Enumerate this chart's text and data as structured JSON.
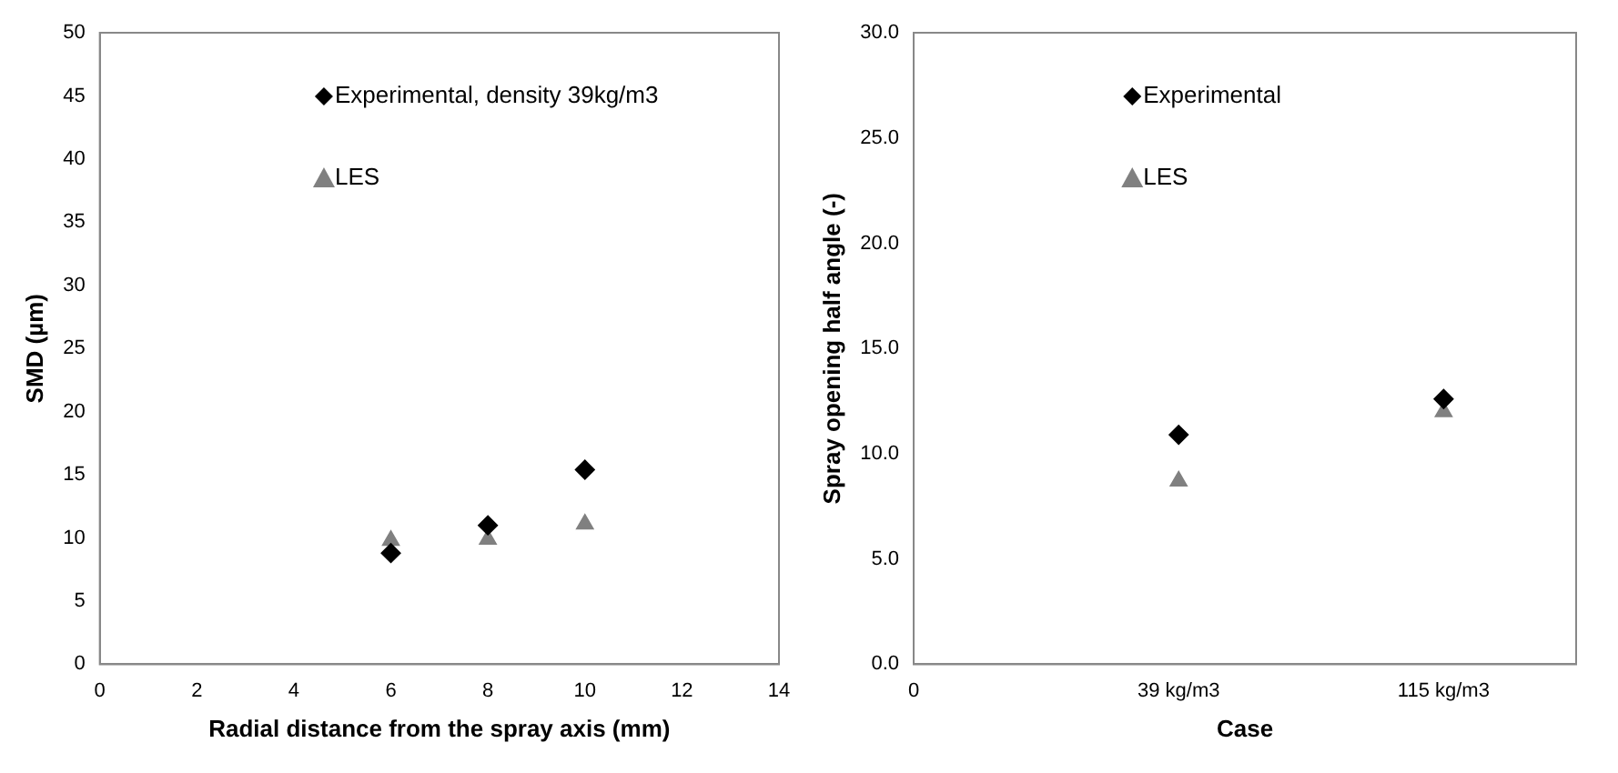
{
  "chart_data": [
    {
      "type": "scatter",
      "xlabel": "Radial distance from the spray axis (mm)",
      "ylabel": "SMD (µm)",
      "xlim": [
        0,
        14
      ],
      "xticks": [
        0,
        2,
        4,
        6,
        8,
        10,
        12,
        14
      ],
      "ylim": [
        0,
        50
      ],
      "yticks": [
        0,
        5,
        10,
        15,
        20,
        25,
        30,
        35,
        40,
        45,
        50
      ],
      "grid": false,
      "legend": "top",
      "series": [
        {
          "name": "Experimental, density 39kg/m3",
          "color": "#000000",
          "marker": "diamond",
          "x": [
            6,
            8,
            10
          ],
          "values": [
            8.8,
            11,
            15.4
          ]
        },
        {
          "name": "LES",
          "color": "#808080",
          "marker": "triangle",
          "x": [
            6,
            8,
            10
          ],
          "values": [
            9.8,
            9.9,
            11.1
          ]
        }
      ]
    },
    {
      "type": "scatter",
      "xlabel": "Case",
      "ylabel": "Spray opening half angle (-)",
      "categories": [
        "0",
        "39 kg/m3",
        "115 kg/m3"
      ],
      "ylim": [
        0,
        30
      ],
      "yticks": [
        {
          "value": 0,
          "label": "0.0"
        },
        {
          "value": 5,
          "label": "5.0"
        },
        {
          "value": 10,
          "label": "10.0"
        },
        {
          "value": 15,
          "label": "15.0"
        },
        {
          "value": 20,
          "label": "20.0"
        },
        {
          "value": 25,
          "label": "25.0"
        },
        {
          "value": 30,
          "label": "30.0"
        }
      ],
      "grid": false,
      "legend": "top",
      "series": [
        {
          "name": "Experimental",
          "color": "#000000",
          "marker": "diamond",
          "values": [
            null,
            10.9,
            12.6
          ]
        },
        {
          "name": "LES",
          "color": "#808080",
          "marker": "triangle",
          "values": [
            null,
            8.7,
            12.0
          ]
        }
      ]
    }
  ]
}
